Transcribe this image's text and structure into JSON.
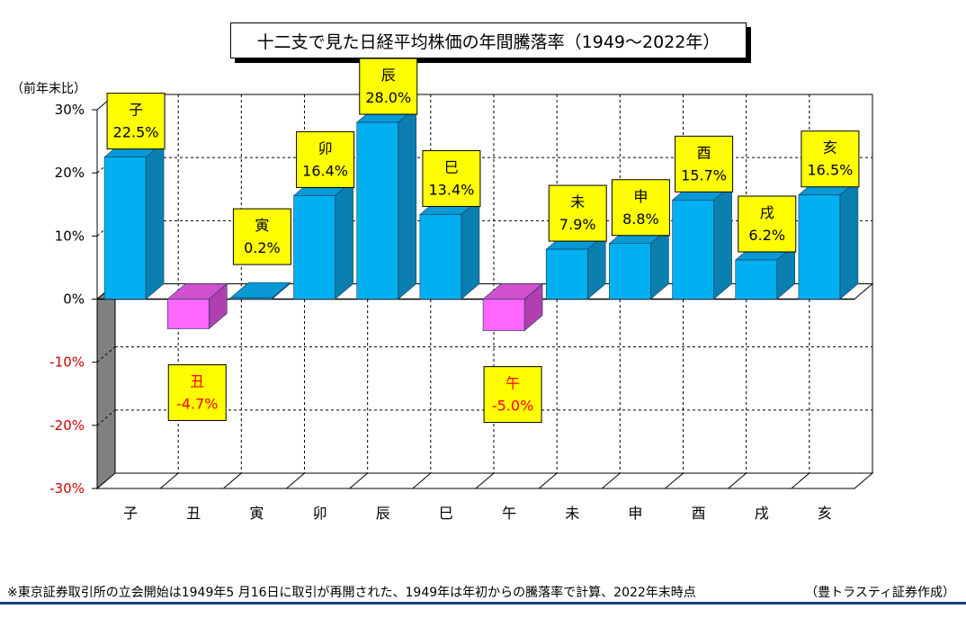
{
  "chart_data": {
    "type": "bar",
    "title": "十二支で見た日経平均株価の年間騰落率（1949～2022年）",
    "ylabel": "（前年末比）",
    "ylim": [
      -30,
      30
    ],
    "yticks": [
      {
        "value": 30,
        "label": "30%"
      },
      {
        "value": 20,
        "label": "20%"
      },
      {
        "value": 10,
        "label": "10%"
      },
      {
        "value": 0,
        "label": "0%"
      },
      {
        "value": -10,
        "label": "-10%"
      },
      {
        "value": -20,
        "label": "-20%"
      },
      {
        "value": -30,
        "label": "-30%"
      }
    ],
    "categories": [
      "子",
      "丑",
      "寅",
      "卯",
      "辰",
      "巳",
      "午",
      "未",
      "申",
      "酉",
      "戌",
      "亥"
    ],
    "values": [
      22.5,
      -4.7,
      0.2,
      16.4,
      28.0,
      13.4,
      -5.0,
      7.9,
      8.8,
      15.7,
      6.2,
      16.5
    ],
    "data_labels": [
      "22.5%",
      "-4.7%",
      "0.2%",
      "16.4%",
      "28.0%",
      "13.4%",
      "-5.0%",
      "7.9%",
      "8.8%",
      "15.7%",
      "6.2%",
      "16.5%"
    ],
    "grid": true,
    "legend": "none",
    "colors": {
      "positive_front": "#00b0f0",
      "positive_side": "#0a7fb0",
      "positive_top": "#0899d6",
      "negative_front": "#ff66ff",
      "negative_side": "#b040b0",
      "negative_top": "#d050d0",
      "label_box": "#ffff00",
      "negative_text": "#ff0000",
      "negative_tick": "#cc0000"
    }
  },
  "footnote": "※東京証券取引所の立会開始は1949年5 月16日に取引が再開された、1949年は年初からの騰落率で計算、2022年末時点",
  "credit": "（豊トラスティ証券作成）"
}
